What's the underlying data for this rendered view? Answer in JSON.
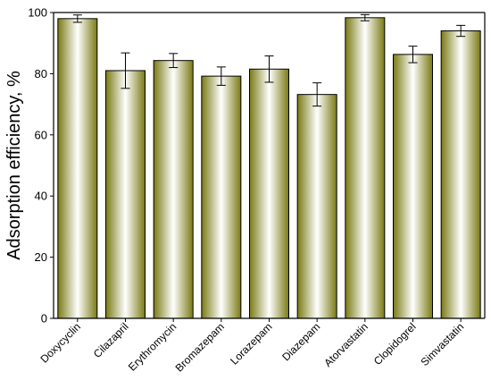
{
  "chart_data": {
    "type": "bar",
    "title": "",
    "xlabel": "",
    "ylabel": "Adsorption efficiency, %",
    "ylim": [
      0,
      100
    ],
    "yticks": [
      0,
      20,
      40,
      60,
      80,
      100
    ],
    "grid": false,
    "legend": "none",
    "categories": [
      "Doxycyclin",
      "Cilazapril",
      "Erythromycin",
      "Bromazepam",
      "Lorazepam",
      "Diazepam",
      "Atorvastatin",
      "Clopidogrel",
      "Simvastatin"
    ],
    "values": [
      98.0,
      81.0,
      84.3,
      79.2,
      81.5,
      73.2,
      98.3,
      86.3,
      94.0
    ],
    "errors": [
      1.2,
      5.8,
      2.3,
      3.0,
      4.3,
      3.8,
      1.0,
      2.7,
      1.8
    ],
    "colors": {
      "bar_edge": "#6b6b10",
      "bar_dark": "#7a7a14",
      "bar_light": "#ffffff",
      "axis": "#000000"
    }
  }
}
